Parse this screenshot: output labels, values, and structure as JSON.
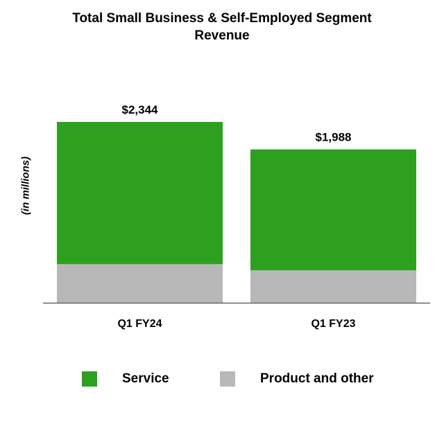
{
  "chart_data": {
    "type": "bar",
    "stacked": true,
    "title": "Total Small Business & Self-Employed Segment Revenue",
    "title_lines": [
      "Total Small Business & Self-Employed Segment",
      "Revenue"
    ],
    "ylabel": "(in millions)",
    "xlabel": "",
    "categories": [
      "Q1 FY24",
      "Q1 FY23"
    ],
    "totals": [
      2344,
      1988
    ],
    "total_labels": [
      "$2,344",
      "$1,988"
    ],
    "series": [
      {
        "name": "Product and other",
        "values": [
          500,
          420
        ],
        "color": "#b8b8b8"
      },
      {
        "name": "Service",
        "values": [
          1844,
          1568
        ],
        "color": "#2ea01f"
      }
    ],
    "ylim": [
      0,
      2344
    ],
    "grid": false,
    "legend_position": "bottom"
  },
  "legend": [
    {
      "label": "Service",
      "color": "#2ea01f"
    },
    {
      "label": "Product and other",
      "color": "#b8b8b8"
    }
  ]
}
